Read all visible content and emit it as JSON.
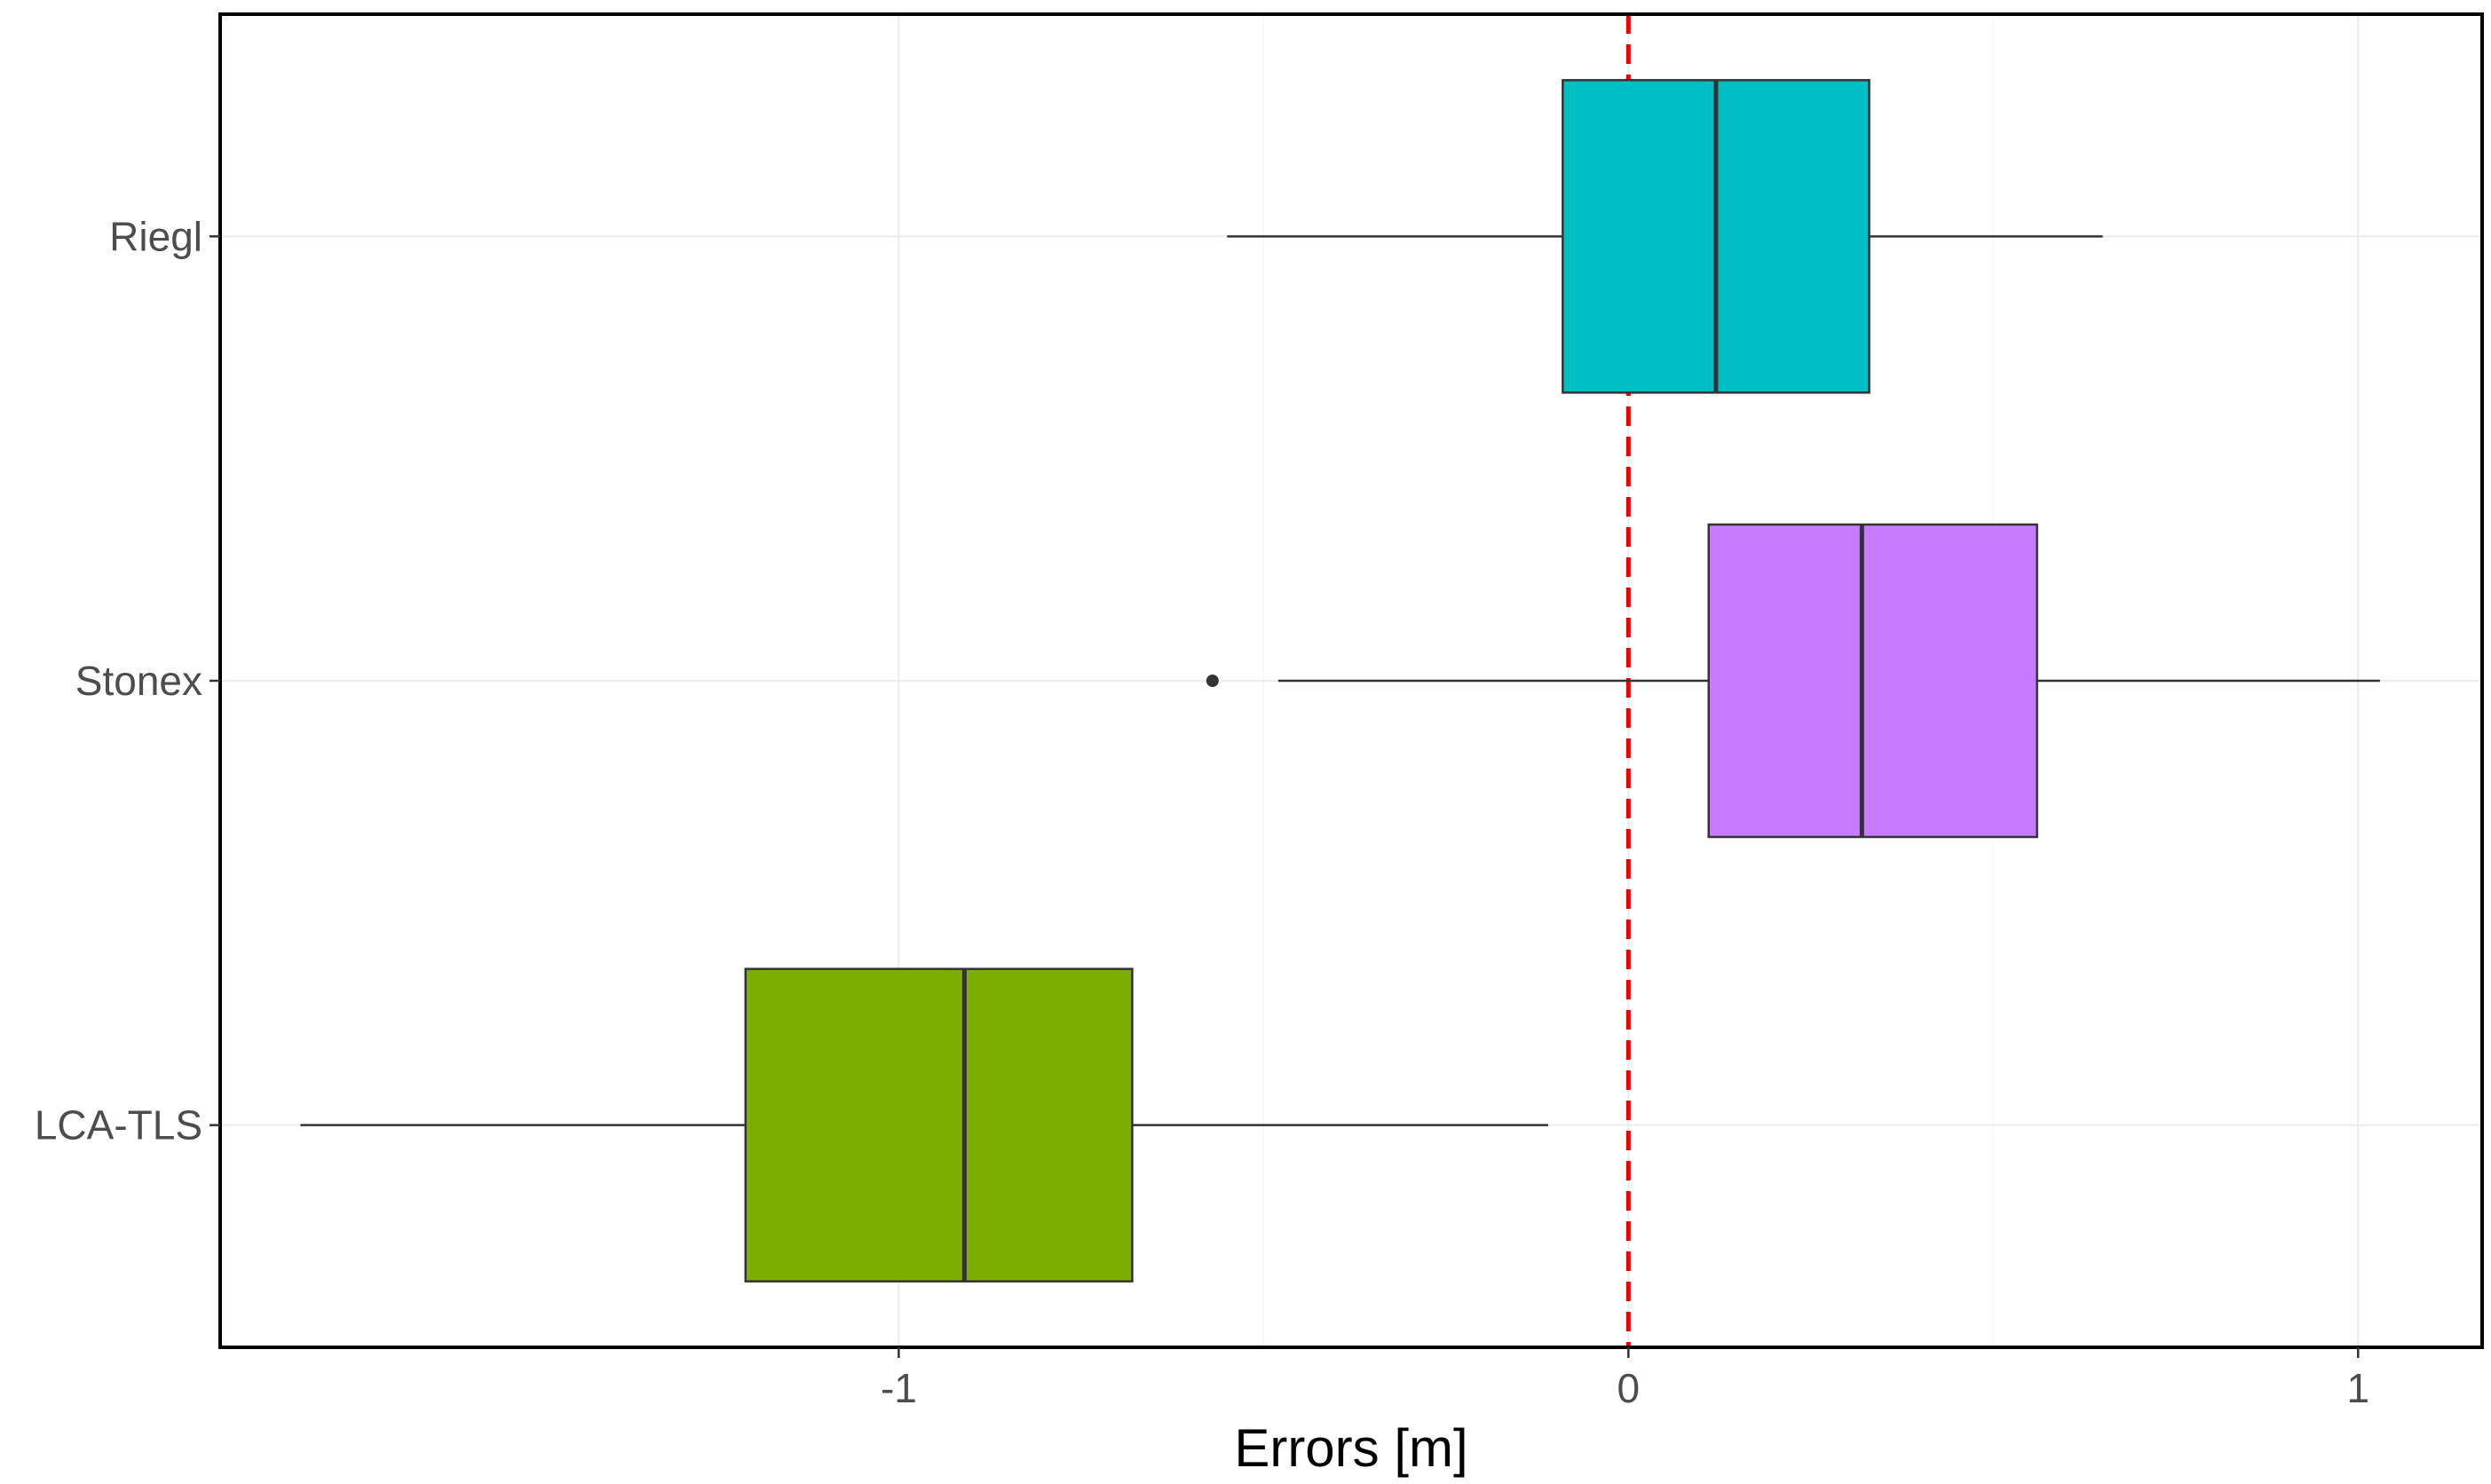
{
  "chart_data": {
    "type": "boxplot",
    "orientation": "horizontal",
    "title": "",
    "xlabel": "Errors [m]",
    "ylabel": "",
    "xlim": [
      -1.93,
      1.17
    ],
    "x_ticks": [
      -1,
      0,
      1
    ],
    "x_tick_labels": [
      "-1",
      "0",
      "1"
    ],
    "grid": true,
    "legend": "none",
    "reference_line": {
      "x": 0,
      "style": "dashed",
      "color": "#ee0000"
    },
    "categories": [
      "LCA-TLS",
      "Stonex",
      "Riegl"
    ],
    "series": [
      {
        "category": "LCA-TLS",
        "color": "#7cae00",
        "whisker_low": -1.82,
        "q1": -1.21,
        "median": -0.91,
        "q3": -0.68,
        "whisker_high": -0.11,
        "outliers": []
      },
      {
        "category": "Stonex",
        "color": "#c77cff",
        "whisker_low": -0.48,
        "q1": 0.11,
        "median": 0.32,
        "q3": 0.56,
        "whisker_high": 1.03,
        "outliers": [
          -0.57
        ]
      },
      {
        "category": "Riegl",
        "color": "#00bfc4",
        "whisker_low": -0.55,
        "q1": -0.09,
        "median": 0.12,
        "q3": 0.33,
        "whisker_high": 0.65,
        "outliers": []
      }
    ]
  }
}
